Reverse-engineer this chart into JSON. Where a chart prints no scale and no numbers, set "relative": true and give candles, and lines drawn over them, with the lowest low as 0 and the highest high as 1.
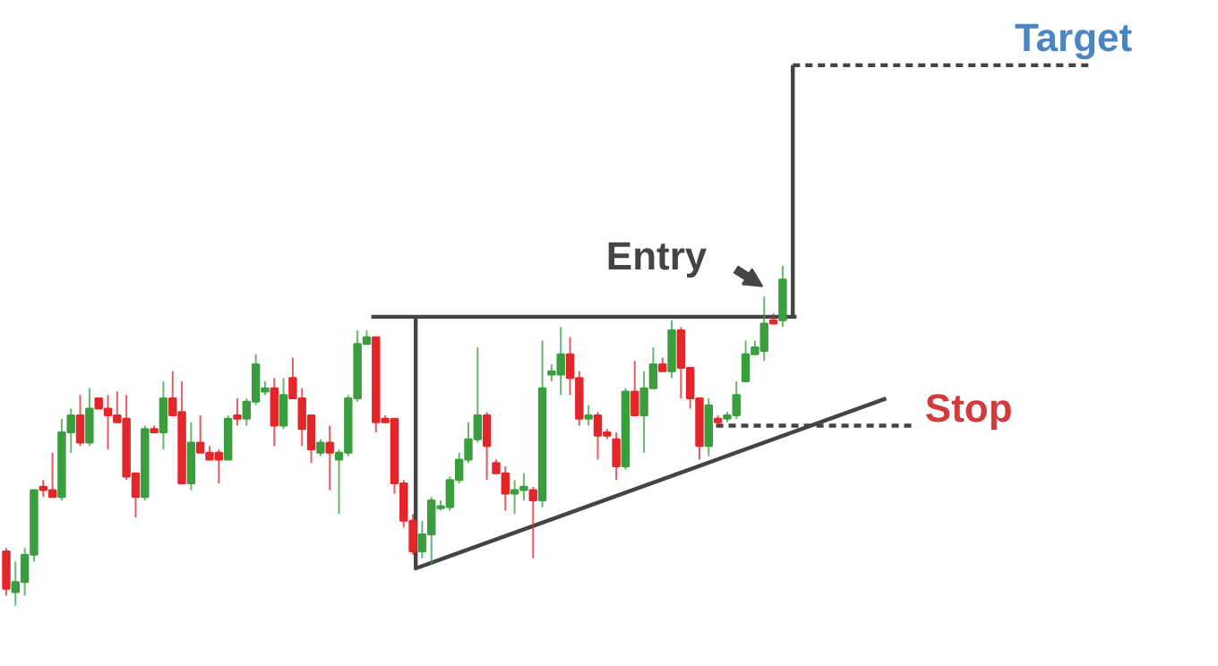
{
  "chart_data": {
    "type": "candlestick",
    "relative": true,
    "categories": [
      null,
      null,
      null,
      null,
      null,
      null,
      null,
      null,
      null,
      null,
      null,
      null,
      null,
      null,
      null,
      null,
      null,
      null,
      null,
      null,
      null,
      null,
      null,
      null,
      null,
      null,
      null,
      null,
      null,
      null,
      null,
      null,
      null,
      null,
      null,
      null,
      null,
      null,
      null,
      null,
      null,
      null,
      null,
      null,
      null,
      null,
      null,
      null,
      null,
      null,
      null,
      null,
      null,
      null,
      null,
      null,
      null,
      null,
      null,
      null,
      null,
      null,
      null,
      null,
      null,
      null,
      null,
      null,
      null,
      null,
      null,
      null,
      null,
      null,
      null,
      null,
      null,
      null,
      null,
      null,
      null,
      null,
      null,
      null,
      null
    ],
    "ohlc": [
      [
        0.16,
        0.17,
        0.03,
        0.05
      ],
      [
        0.04,
        0.13,
        0,
        0.07
      ],
      [
        0.07,
        0.17,
        0.03,
        0.15
      ],
      [
        0.15,
        0.34,
        0.13,
        0.34
      ],
      [
        0.35,
        0.37,
        0.32,
        0.34
      ],
      [
        0.34,
        0.45,
        0.32,
        0.32
      ],
      [
        0.32,
        0.55,
        0.31,
        0.51
      ],
      [
        0.51,
        0.58,
        0.45,
        0.56
      ],
      [
        0.56,
        0.62,
        0.47,
        0.48
      ],
      [
        0.48,
        0.64,
        0.47,
        0.58
      ],
      [
        0.61,
        0.61,
        0.58,
        0.58
      ],
      [
        0.58,
        0.62,
        0.46,
        0.56
      ],
      [
        0.56,
        0.63,
        0.54,
        0.54
      ],
      [
        0.55,
        0.62,
        0.37,
        0.38
      ],
      [
        0.39,
        0.39,
        0.26,
        0.32
      ],
      [
        0.32,
        0.53,
        0.31,
        0.52
      ],
      [
        0.52,
        0.53,
        0.51,
        0.51
      ],
      [
        0.51,
        0.66,
        0.46,
        0.61
      ],
      [
        0.61,
        0.69,
        0.56,
        0.56
      ],
      [
        0.57,
        0.66,
        0.36,
        0.36
      ],
      [
        0.36,
        0.54,
        0.34,
        0.48
      ],
      [
        0.48,
        0.56,
        0.45,
        0.45
      ],
      [
        0.45,
        0.47,
        0.43,
        0.43
      ],
      [
        0.45,
        0.46,
        0.36,
        0.43
      ],
      [
        0.43,
        0.56,
        0.43,
        0.55
      ],
      [
        0.56,
        0.61,
        0.53,
        0.55
      ],
      [
        0.55,
        0.61,
        0.53,
        0.6
      ],
      [
        0.6,
        0.74,
        0.59,
        0.71
      ],
      [
        0.63,
        0.66,
        0.62,
        0.64
      ],
      [
        0.64,
        0.67,
        0.47,
        0.53
      ],
      [
        0.53,
        0.67,
        0.52,
        0.62
      ],
      [
        0.67,
        0.73,
        0.61,
        0.61
      ],
      [
        0.61,
        0.64,
        0.47,
        0.52
      ],
      [
        0.56,
        0.56,
        0.42,
        0.46
      ],
      [
        0.45,
        0.49,
        0.44,
        0.48
      ],
      [
        0.48,
        0.53,
        0.34,
        0.45
      ],
      [
        0.43,
        0.46,
        0.27,
        0.45
      ],
      [
        0.45,
        0.62,
        0.44,
        0.61
      ],
      [
        0.61,
        0.81,
        0.6,
        0.77
      ],
      [
        0.77,
        0.81,
        0.77,
        0.79
      ],
      [
        0.79,
        0.79,
        0.51,
        0.54
      ],
      [
        0.55,
        0.56,
        0.54,
        0.54
      ],
      [
        0.55,
        0.55,
        0.33,
        0.36
      ],
      [
        0.36,
        0.37,
        0.23,
        0.25
      ],
      [
        0.25,
        0.27,
        0.15,
        0.16
      ],
      [
        0.16,
        0.25,
        0.14,
        0.21
      ],
      [
        0.21,
        0.32,
        0.12,
        0.31
      ],
      [
        0.29,
        0.31,
        0.28,
        0.29
      ],
      [
        0.29,
        0.38,
        0.28,
        0.37
      ],
      [
        0.37,
        0.45,
        0.36,
        0.43
      ],
      [
        0.43,
        0.54,
        0.42,
        0.49
      ],
      [
        0.49,
        0.76,
        0.48,
        0.56
      ],
      [
        0.56,
        0.57,
        0.37,
        0.47
      ],
      [
        0.42,
        0.43,
        0.39,
        0.39
      ],
      [
        0.39,
        0.41,
        0.28,
        0.33
      ],
      [
        0.33,
        0.37,
        0.27,
        0.34
      ],
      [
        0.34,
        0.39,
        0.31,
        0.35
      ],
      [
        0.34,
        0.35,
        0.14,
        0.31
      ],
      [
        0.31,
        0.78,
        0.29,
        0.64
      ],
      [
        0.68,
        0.71,
        0.66,
        0.69
      ],
      [
        0.68,
        0.82,
        0.62,
        0.74
      ],
      [
        0.74,
        0.79,
        0.62,
        0.67
      ],
      [
        0.67,
        0.69,
        0.53,
        0.55
      ],
      [
        0.55,
        0.59,
        0.53,
        0.56
      ],
      [
        0.56,
        0.57,
        0.43,
        0.5
      ],
      [
        0.51,
        0.52,
        0.49,
        0.5
      ],
      [
        0.49,
        0.51,
        0.37,
        0.41
      ],
      [
        0.41,
        0.64,
        0.4,
        0.63
      ],
      [
        0.63,
        0.72,
        0.56,
        0.56
      ],
      [
        0.56,
        0.69,
        0.45,
        0.64
      ],
      [
        0.64,
        0.76,
        0.64,
        0.71
      ],
      [
        0.71,
        0.73,
        0.69,
        0.69
      ],
      [
        0.69,
        0.84,
        0.67,
        0.81
      ],
      [
        0.81,
        0.82,
        0.61,
        0.7
      ],
      [
        0.7,
        0.7,
        0.58,
        0.61
      ],
      [
        0.61,
        0.61,
        0.43,
        0.47
      ],
      [
        0.47,
        0.61,
        0.44,
        0.59
      ],
      [
        0.55,
        0.56,
        0.53,
        0.54
      ],
      [
        0.55,
        0.57,
        0.54,
        0.56
      ],
      [
        0.56,
        0.66,
        0.55,
        0.62
      ],
      [
        0.66,
        0.78,
        0.66,
        0.74
      ],
      [
        0.74,
        0.78,
        0.74,
        0.76
      ],
      [
        0.75,
        0.91,
        0.72,
        0.83
      ],
      [
        0.84,
        0.86,
        0.83,
        0.83
      ],
      [
        0.84,
        1.0,
        0.82,
        0.96
      ]
    ],
    "ref_lines": [
      {
        "axis": "y",
        "value": 0.85,
        "color": "#444444"
      },
      {
        "axis": "y",
        "value": 1.59,
        "label": "Target",
        "color": "#444444",
        "line_style": "dashed"
      },
      {
        "axis": "y",
        "value": 0.53,
        "label": "Stop",
        "color": "#444444",
        "line_style": "dashed"
      }
    ],
    "annotations": [
      "Entry"
    ]
  }
}
